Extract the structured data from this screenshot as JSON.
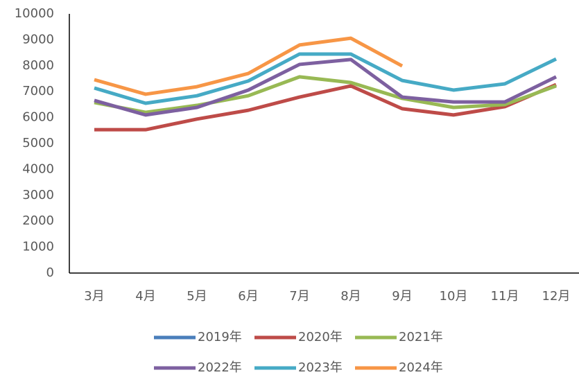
{
  "chart_data": {
    "type": "line",
    "categories": [
      "3月",
      "4月",
      "5月",
      "6月",
      "7月",
      "8月",
      "9月",
      "10月",
      "11月",
      "12月"
    ],
    "series": [
      {
        "name": "2019年",
        "color": "#4a7ebb",
        "values": [
          null,
          null,
          null,
          null,
          null,
          null,
          null,
          null,
          null,
          null
        ]
      },
      {
        "name": "2020年",
        "color": "#be4b48",
        "values": [
          5530,
          5530,
          5940,
          6280,
          6790,
          7220,
          6340,
          6100,
          6420,
          7270
        ]
      },
      {
        "name": "2021年",
        "color": "#98b954",
        "values": [
          6580,
          6200,
          6470,
          6840,
          7570,
          7350,
          6740,
          6390,
          6500,
          7220
        ]
      },
      {
        "name": "2022年",
        "color": "#7d60a0",
        "values": [
          6660,
          6100,
          6390,
          7060,
          8050,
          8240,
          6790,
          6600,
          6600,
          7570
        ]
      },
      {
        "name": "2023年",
        "color": "#46aac5",
        "values": [
          7140,
          6550,
          6840,
          7410,
          8450,
          8450,
          7430,
          7060,
          7300,
          8260
        ]
      },
      {
        "name": "2024年",
        "color": "#f79646",
        "values": [
          7460,
          6900,
          7190,
          7700,
          8800,
          9060,
          7990,
          null,
          null,
          null
        ]
      }
    ],
    "ylim": [
      0,
      10000
    ],
    "yticks": [
      0,
      1000,
      2000,
      3000,
      4000,
      5000,
      6000,
      7000,
      8000,
      9000,
      10000
    ],
    "grid": false
  }
}
